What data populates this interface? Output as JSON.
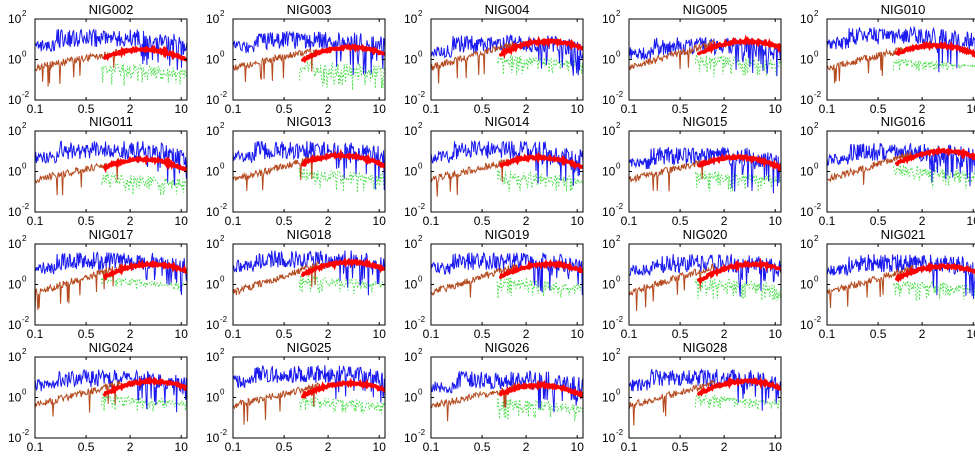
{
  "figure": {
    "colors": {
      "axes": "#000000",
      "series_blue": "#1a1aee",
      "series_brown": "#b54a1e",
      "series_red": "#ff0000",
      "series_green": "#44dd44"
    }
  },
  "chart_data": {
    "type": "line",
    "x_scale": "log",
    "y_scale": "log",
    "xlim": [
      0.1,
      12
    ],
    "ylim": [
      0.01,
      100
    ],
    "x_ticks": [
      0.1,
      0.5,
      2,
      10
    ],
    "x_tick_labels": [
      "0.1",
      "0.5",
      "2",
      "10"
    ],
    "y_ticks": [
      0.01,
      1,
      100
    ],
    "y_tick_labels": [
      {
        "base": "10",
        "exp": "-2"
      },
      {
        "base": "10",
        "exp": "0"
      },
      {
        "base": "10",
        "exp": "2"
      }
    ],
    "grid": false,
    "legend": "none",
    "series_styles": [
      {
        "color": "#1a1aee",
        "style": "solid",
        "description_key": "blue"
      },
      {
        "color": "#b54a1e",
        "style": "solid",
        "description_key": "brown"
      },
      {
        "color": "#ff0000",
        "style": "thick",
        "description_key": "red"
      },
      {
        "color": "#44dd44",
        "style": "dotted",
        "description_key": "green"
      }
    ],
    "panels": [
      {
        "title": "NIG002",
        "blue_hi": 1.5,
        "red_peak": 0.5,
        "red_x": 3,
        "green_lo": -1.3
      },
      {
        "title": "NIG003",
        "blue_hi": 1.4,
        "red_peak": 0.6,
        "red_x": 4,
        "green_lo": -1.5
      },
      {
        "title": "NIG004",
        "blue_hi": 1.2,
        "red_peak": 0.9,
        "red_x": 4,
        "green_lo": -0.8
      },
      {
        "title": "NIG005",
        "blue_hi": 1.1,
        "red_peak": 0.9,
        "red_x": 4,
        "green_lo": -0.9
      },
      {
        "title": "NIG010",
        "blue_hi": 1.6,
        "red_peak": 0.7,
        "red_x": 3,
        "green_lo": -0.6
      },
      {
        "title": "NIG011",
        "blue_hi": 1.5,
        "red_peak": 0.6,
        "red_x": 3,
        "green_lo": -1.2
      },
      {
        "title": "NIG013",
        "blue_hi": 1.5,
        "red_peak": 0.8,
        "red_x": 3,
        "green_lo": -1.1
      },
      {
        "title": "NIG014",
        "blue_hi": 1.5,
        "red_peak": 0.7,
        "red_x": 3,
        "green_lo": -1.0
      },
      {
        "title": "NIG015",
        "blue_hi": 1.2,
        "red_peak": 0.7,
        "red_x": 3,
        "green_lo": -1.0
      },
      {
        "title": "NIG016",
        "blue_hi": 1.4,
        "red_peak": 1.0,
        "red_x": 4,
        "green_lo": -0.9
      },
      {
        "title": "NIG017",
        "blue_hi": 1.6,
        "red_peak": 1.0,
        "red_x": 4,
        "green_lo": -0.3
      },
      {
        "title": "NIG018",
        "blue_hi": 1.7,
        "red_peak": 1.1,
        "red_x": 4,
        "green_lo": -0.5
      },
      {
        "title": "NIG019",
        "blue_hi": 1.6,
        "red_peak": 1.0,
        "red_x": 4,
        "green_lo": -0.7
      },
      {
        "title": "NIG020",
        "blue_hi": 1.5,
        "red_peak": 1.0,
        "red_x": 5,
        "green_lo": -0.8
      },
      {
        "title": "NIG021",
        "blue_hi": 1.5,
        "red_peak": 0.9,
        "red_x": 4,
        "green_lo": -0.8
      },
      {
        "title": "NIG024",
        "blue_hi": 1.4,
        "red_peak": 0.8,
        "red_x": 4,
        "green_lo": -0.7
      },
      {
        "title": "NIG025",
        "blue_hi": 1.6,
        "red_peak": 0.7,
        "red_x": 4,
        "green_lo": -0.8
      },
      {
        "title": "NIG026",
        "blue_hi": 1.3,
        "red_peak": 0.6,
        "red_x": 3,
        "green_lo": -1.2
      },
      {
        "title": "NIG028",
        "blue_hi": 1.4,
        "red_peak": 0.8,
        "red_x": 4,
        "green_lo": -0.6
      }
    ]
  }
}
